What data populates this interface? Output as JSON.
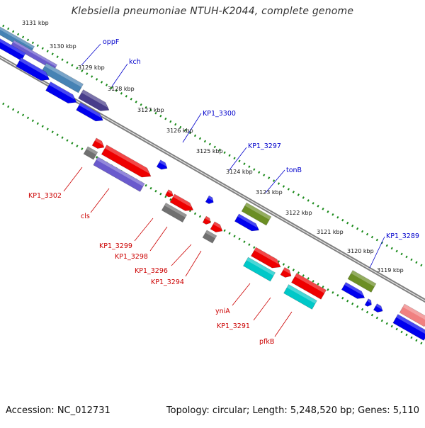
{
  "title": "Klebsiella pneumoniae NTUH-K2044, complete genome",
  "footer": {
    "accession": "Accession: NC_012731",
    "summary": "Topology: circular; Length: 5,248,520 bp; Genes: 5,110"
  },
  "colors": {
    "backbone": "#7f7f7f",
    "ruler_dots": "#1a8a1a",
    "forward_label": "#0000cc",
    "reverse_label": "#cc0000",
    "gene_blue": "#0000ee",
    "gene_red": "#ee0000",
    "gene_gray": "#707070",
    "gene_olive": "#6b8e23",
    "gene_cyan": "#00c8c8",
    "gene_purple": "#6a5acd",
    "gene_darkslate": "#483d8b",
    "gene_steel": "#4682b4",
    "gene_salmon": "#f08080"
  },
  "scale_labels": [
    "3131 kbp",
    "3130 kbp",
    "3129 kbp",
    "3128 kbp",
    "3127 kbp",
    "3126 kbp",
    "3125 kbp",
    "3124 kbp",
    "3123 kbp",
    "3122 kbp",
    "3121 kbp",
    "3120 kbp",
    "3119 kbp"
  ],
  "forward_gene_labels": [
    "oppF",
    "kch",
    "KP1_3300",
    "KP1_3297",
    "tonB",
    "KP1_3289"
  ],
  "reverse_gene_labels": [
    "KP1_3302",
    "cls",
    "KP1_3299",
    "KP1_3298",
    "KP1_3296",
    "KP1_3294",
    "yniA",
    "KP1_3291",
    "pfkB"
  ]
}
